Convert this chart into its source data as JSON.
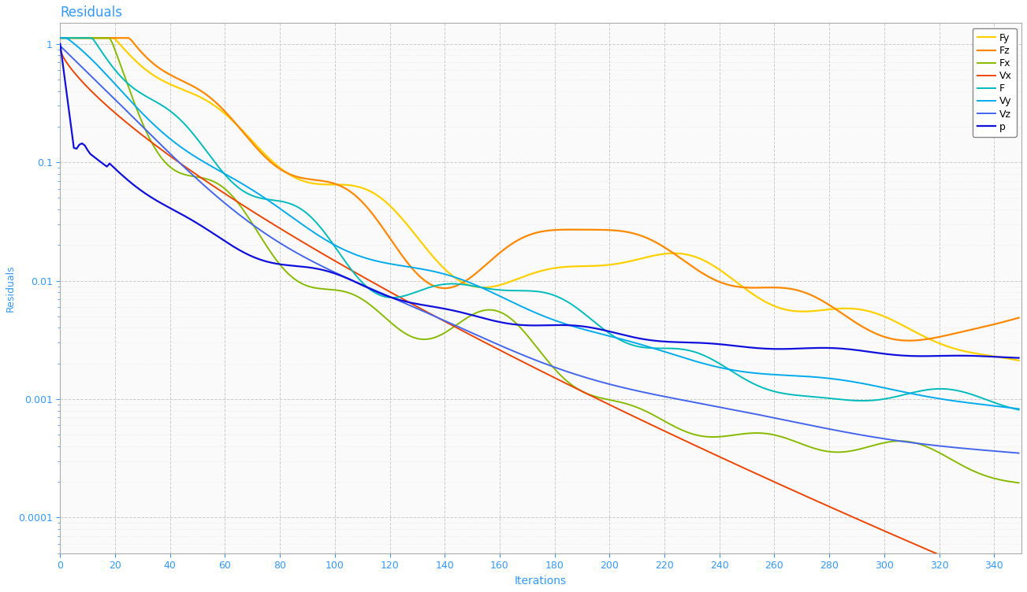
{
  "title": "Residuals",
  "xlabel": "Iterations",
  "ylabel": "Residuals",
  "xlim": [
    0,
    350
  ],
  "lines": {
    "p": {
      "color": "#1010DD",
      "lw": 1.6
    },
    "F": {
      "color": "#00BBBB",
      "lw": 1.4
    },
    "Fx": {
      "color": "#88BB00",
      "lw": 1.4
    },
    "Fy": {
      "color": "#FFD000",
      "lw": 1.6
    },
    "Fz": {
      "color": "#FF8800",
      "lw": 1.6
    },
    "Vx": {
      "color": "#EE4400",
      "lw": 1.4
    },
    "Vy": {
      "color": "#00AAEE",
      "lw": 1.4
    },
    "Vz": {
      "color": "#4466EE",
      "lw": 1.4
    }
  },
  "grid_color": "#CCCCCC",
  "bg_color": "#FAFAFA",
  "title_color": "#3399FF",
  "axis_label_color": "#3399FF",
  "tick_color": "#3399FF",
  "n_iterations": 350
}
